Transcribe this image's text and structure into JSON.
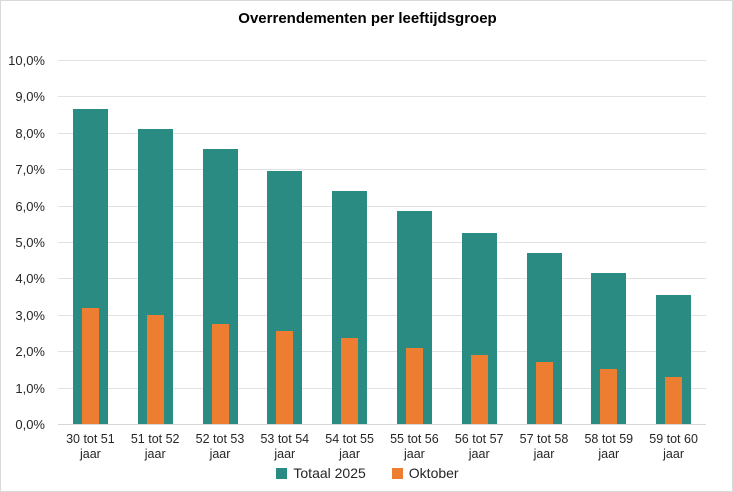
{
  "chart_data": {
    "type": "bar",
    "title": "Overrendementen per leeftijdsgroep",
    "categories": [
      "30 tot 51",
      "51 tot 52",
      "52 tot 53",
      "53 tot 54",
      "54 tot 55",
      "55 tot 56",
      "56 tot 57",
      "57 tot 58",
      "58 tot 59",
      "59 tot 60"
    ],
    "category_suffix": "jaar",
    "series": [
      {
        "name": "Totaal 2025",
        "color": "#2A8B82",
        "bar_style": "wide",
        "values": [
          8.65,
          8.1,
          7.55,
          6.95,
          6.4,
          5.85,
          5.25,
          4.7,
          4.15,
          3.55
        ]
      },
      {
        "name": "Oktober",
        "color": "#ED7D31",
        "bar_style": "narrow-overlay",
        "values": [
          3.2,
          3.0,
          2.75,
          2.55,
          2.35,
          2.1,
          1.9,
          1.7,
          1.5,
          1.3
        ]
      }
    ],
    "ylim": [
      0,
      10
    ],
    "y_ticks": [
      {
        "value": 0,
        "label": "0,0%"
      },
      {
        "value": 1,
        "label": "1,0%"
      },
      {
        "value": 2,
        "label": "2,0%"
      },
      {
        "value": 3,
        "label": "3,0%"
      },
      {
        "value": 4,
        "label": "4,0%"
      },
      {
        "value": 5,
        "label": "5,0%"
      },
      {
        "value": 6,
        "label": "6,0%"
      },
      {
        "value": 7,
        "label": "7,0%"
      },
      {
        "value": 8,
        "label": "8,0%"
      },
      {
        "value": 9,
        "label": "9,0%"
      },
      {
        "value": 10,
        "label": "10,0%"
      }
    ],
    "grid": true,
    "legend_position": "bottom",
    "xlabel": "",
    "ylabel": ""
  },
  "colors": {
    "background": "#FFFFFF",
    "border": "#D9D9D9",
    "gridline": "#E2E2E2",
    "axis_line": "#D6D6D6",
    "axis_text": "#262626",
    "title_text": "#000000"
  }
}
